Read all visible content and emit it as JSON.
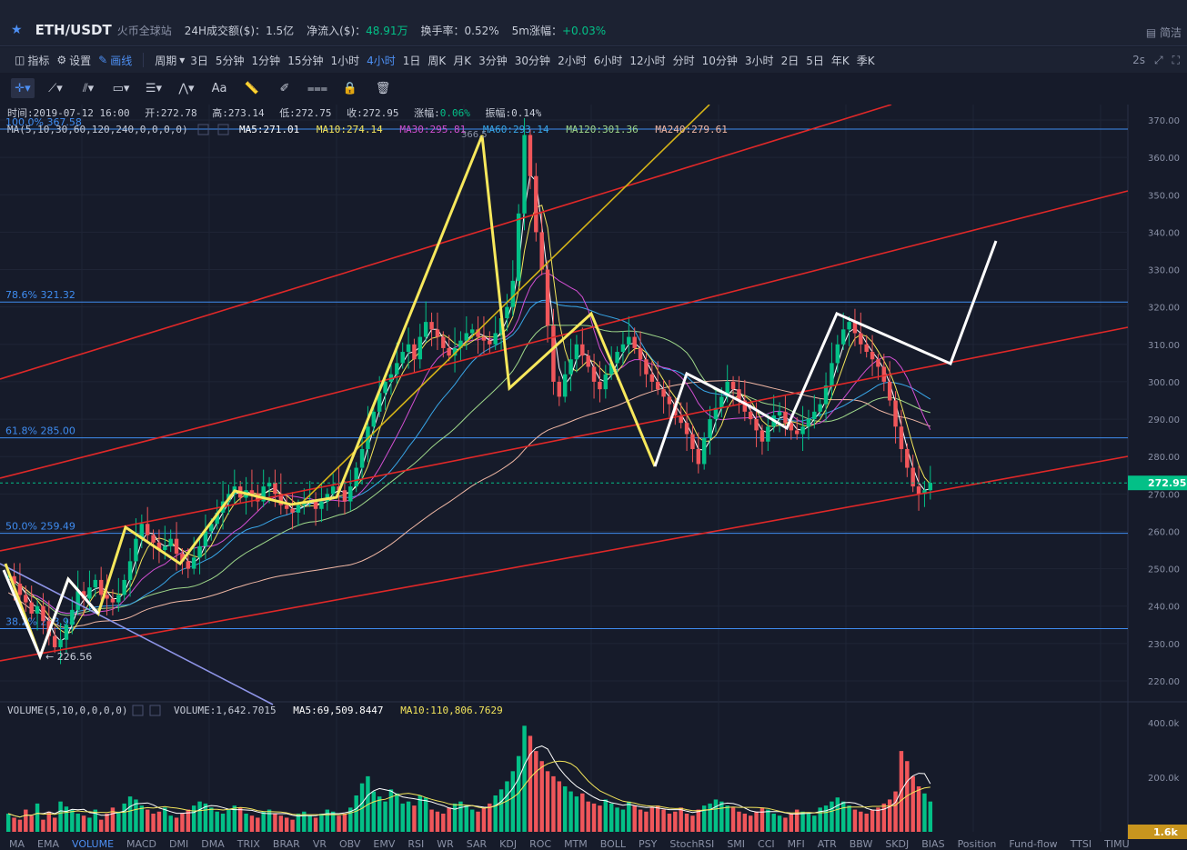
{
  "header": {
    "pair": "ETH/USDT",
    "venue": "火币全球站",
    "stats": [
      {
        "label": "24H成交额($)：",
        "value": "1.5亿",
        "green": false
      },
      {
        "label": "净流入($)：",
        "value": "48.91万",
        "green": true
      },
      {
        "label": "换手率：",
        "value": "0.52%",
        "green": false
      },
      {
        "label": "5m涨幅：",
        "value": "+0.03%",
        "green": true
      }
    ],
    "right_label": "简洁"
  },
  "toolbar": {
    "indicator_label": "指标",
    "settings_label": "设置",
    "draw_label": "画线",
    "period_label": "周期",
    "periods": [
      "3日",
      "5分钟",
      "1分钟",
      "15分钟",
      "1小时",
      "4小时",
      "1日",
      "周K",
      "月K",
      "3分钟",
      "30分钟",
      "2小时",
      "6小时",
      "12小时",
      "分时",
      "10分钟",
      "3小时",
      "2日",
      "5日",
      "年K",
      "季K"
    ],
    "active_period": "4小时",
    "refresh_label": "2s"
  },
  "ohlc_bar": {
    "time_label": "时间:2019-07-12 16:00",
    "open_label": "开:272.78",
    "high_label": "高:273.14",
    "low_label": "低:272.75",
    "close_label": "收:272.95",
    "change_label": "涨幅:",
    "change_value": "0.06%",
    "amplitude_label": "振幅:0.14%"
  },
  "ma_bar": {
    "title": "MA(5,10,30,60,120,240,0,0,0,0)",
    "items": [
      {
        "text": "MA5:271.01",
        "color": "#ffffff"
      },
      {
        "text": "MA10:274.14",
        "color": "#f3e55b"
      },
      {
        "text": "MA30:295.81",
        "color": "#d24fd2"
      },
      {
        "text": "MA60:293.14",
        "color": "#38a6e8"
      },
      {
        "text": "MA120:301.36",
        "color": "#9fd88a"
      },
      {
        "text": "MA240:279.61",
        "color": "#f0b7a4"
      }
    ]
  },
  "fib_labels": {
    "f100": "100.0% 367.58",
    "f786": "78.6% 321.32",
    "f618": "61.8% 285.00",
    "f500": "50.0% 259.49",
    "f382": "38.2% 233.98"
  },
  "annotations": {
    "high": "366.5",
    "low": "226.56"
  },
  "price_axis": {
    "ticks": [
      "370.00",
      "360.00",
      "350.00",
      "340.00",
      "330.00",
      "320.00",
      "310.00",
      "300.00",
      "290.00",
      "280.00",
      "270.00",
      "260.00",
      "250.00",
      "240.00",
      "230.00",
      "220.00"
    ],
    "current": "272.95"
  },
  "volume": {
    "title": "VOLUME(5,10,0,0,0,0)",
    "volume_text": "VOLUME:1,642.7015",
    "ma5_text": "MA5:69,509.8447",
    "ma10_text": "MA10:110,806.7629",
    "ticks": [
      "400.0k",
      "200.0k"
    ],
    "current": "1.6k"
  },
  "indicator_tabs": [
    "MA",
    "EMA",
    "VOLUME",
    "MACD",
    "DMI",
    "DMA",
    "TRIX",
    "BRAR",
    "VR",
    "OBV",
    "EMV",
    "RSI",
    "WR",
    "SAR",
    "KDJ",
    "ROC",
    "MTM",
    "BOLL",
    "PSY",
    "StochRSI",
    "SMI",
    "CCI",
    "MFI",
    "ATR",
    "BBW",
    "SKDJ",
    "BIAS",
    "Position",
    "Fund-flow",
    "TTSI",
    "TIMU"
  ],
  "active_indicator": "VOLUME",
  "colors": {
    "bg": "#161b2a",
    "up": "#03c087",
    "down": "#f0565a",
    "blue_line": "#3f8cf0",
    "red_trend": "#e02828",
    "yellow_wave": "#f7e85c",
    "white_wave": "#ffffff",
    "accent": "#4d8ff3"
  },
  "chart_data": {
    "type": "candlestick",
    "x_range": [
      "2019-05-27",
      "2019-07-12 16:00"
    ],
    "ylim": [
      215,
      375
    ],
    "closes": [
      248,
      246,
      243,
      241,
      238,
      240,
      236,
      232,
      229,
      231,
      235,
      239,
      244,
      242,
      245,
      247,
      243,
      242,
      241,
      243,
      247,
      252,
      258,
      262,
      259,
      257,
      255,
      256,
      258,
      254,
      252,
      250,
      253,
      256,
      260,
      262,
      265,
      268,
      270,
      272,
      269,
      271,
      270,
      268,
      272,
      273,
      270,
      267,
      266,
      265,
      267,
      268,
      268,
      266,
      268,
      270,
      272,
      271,
      268,
      272,
      277,
      282,
      288,
      292,
      297,
      300,
      302,
      305,
      308,
      310,
      306,
      312,
      316,
      314,
      312,
      309,
      307,
      309,
      311,
      313,
      314,
      312,
      311,
      310,
      313,
      317,
      320,
      327,
      345,
      366,
      355,
      340,
      330,
      315,
      300,
      296,
      302,
      306,
      310,
      307,
      304,
      300,
      298,
      302,
      305,
      308,
      310,
      312,
      309,
      306,
      302,
      300,
      298,
      296,
      294,
      291,
      289,
      286,
      282,
      278,
      285,
      290,
      293,
      296,
      300,
      298,
      295,
      292,
      290,
      287,
      284,
      288,
      291,
      292,
      289,
      287,
      286,
      288,
      290,
      292,
      294,
      299,
      305,
      310,
      314,
      316,
      313,
      310,
      308,
      306,
      304,
      300,
      295,
      288,
      282,
      277,
      272,
      270,
      271,
      273
    ],
    "volumes": [
      18,
      14,
      12,
      22,
      16,
      28,
      12,
      20,
      14,
      30,
      25,
      22,
      18,
      16,
      14,
      22,
      12,
      18,
      24,
      20,
      28,
      35,
      32,
      26,
      22,
      18,
      20,
      24,
      16,
      14,
      18,
      22,
      26,
      30,
      28,
      24,
      20,
      18,
      22,
      26,
      24,
      18,
      16,
      14,
      20,
      22,
      18,
      16,
      14,
      12,
      18,
      20,
      16,
      14,
      18,
      22,
      20,
      16,
      18,
      24,
      36,
      48,
      55,
      40,
      35,
      30,
      42,
      38,
      28,
      30,
      26,
      36,
      34,
      22,
      20,
      18,
      24,
      28,
      30,
      26,
      22,
      20,
      24,
      28,
      36,
      42,
      50,
      60,
      75,
      105,
      95,
      80,
      70,
      60,
      55,
      50,
      45,
      40,
      35,
      38,
      30,
      28,
      26,
      32,
      28,
      24,
      22,
      30,
      26,
      22,
      20,
      24,
      26,
      22,
      18,
      20,
      24,
      18,
      16,
      22,
      26,
      28,
      32,
      30,
      26,
      24,
      20,
      18,
      16,
      20,
      24,
      22,
      18,
      16,
      14,
      18,
      22,
      20,
      18,
      16,
      24,
      26,
      30,
      34,
      30,
      26,
      22,
      20,
      18,
      22,
      24,
      28,
      32,
      40,
      80,
      70,
      55,
      45,
      38,
      30
    ]
  }
}
